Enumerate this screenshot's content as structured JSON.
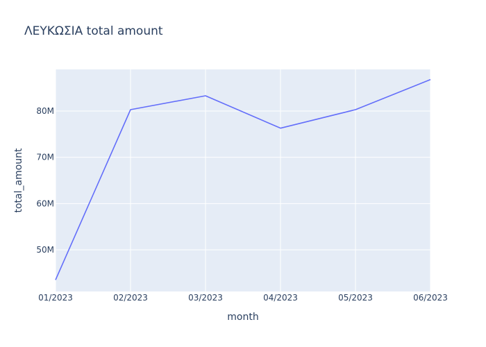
{
  "chart_data": {
    "type": "line",
    "title": "ΛΕΥΚΩΣΙΑ total amount",
    "xlabel": "month",
    "ylabel": "total_amount",
    "categories": [
      "01/2023",
      "02/2023",
      "03/2023",
      "04/2023",
      "05/2023",
      "06/2023"
    ],
    "series": [
      {
        "values": [
          43500000,
          80300000,
          83300000,
          76300000,
          80300000,
          86800000
        ],
        "color": "#636efa"
      }
    ],
    "ylim": [
      41000000,
      89000000
    ],
    "yticks": [
      50000000,
      60000000,
      70000000,
      80000000
    ],
    "ytick_labels": [
      "50M",
      "60M",
      "70M",
      "80M"
    ],
    "grid": true,
    "plot_background": "#e5ecf6",
    "legend": "none"
  }
}
